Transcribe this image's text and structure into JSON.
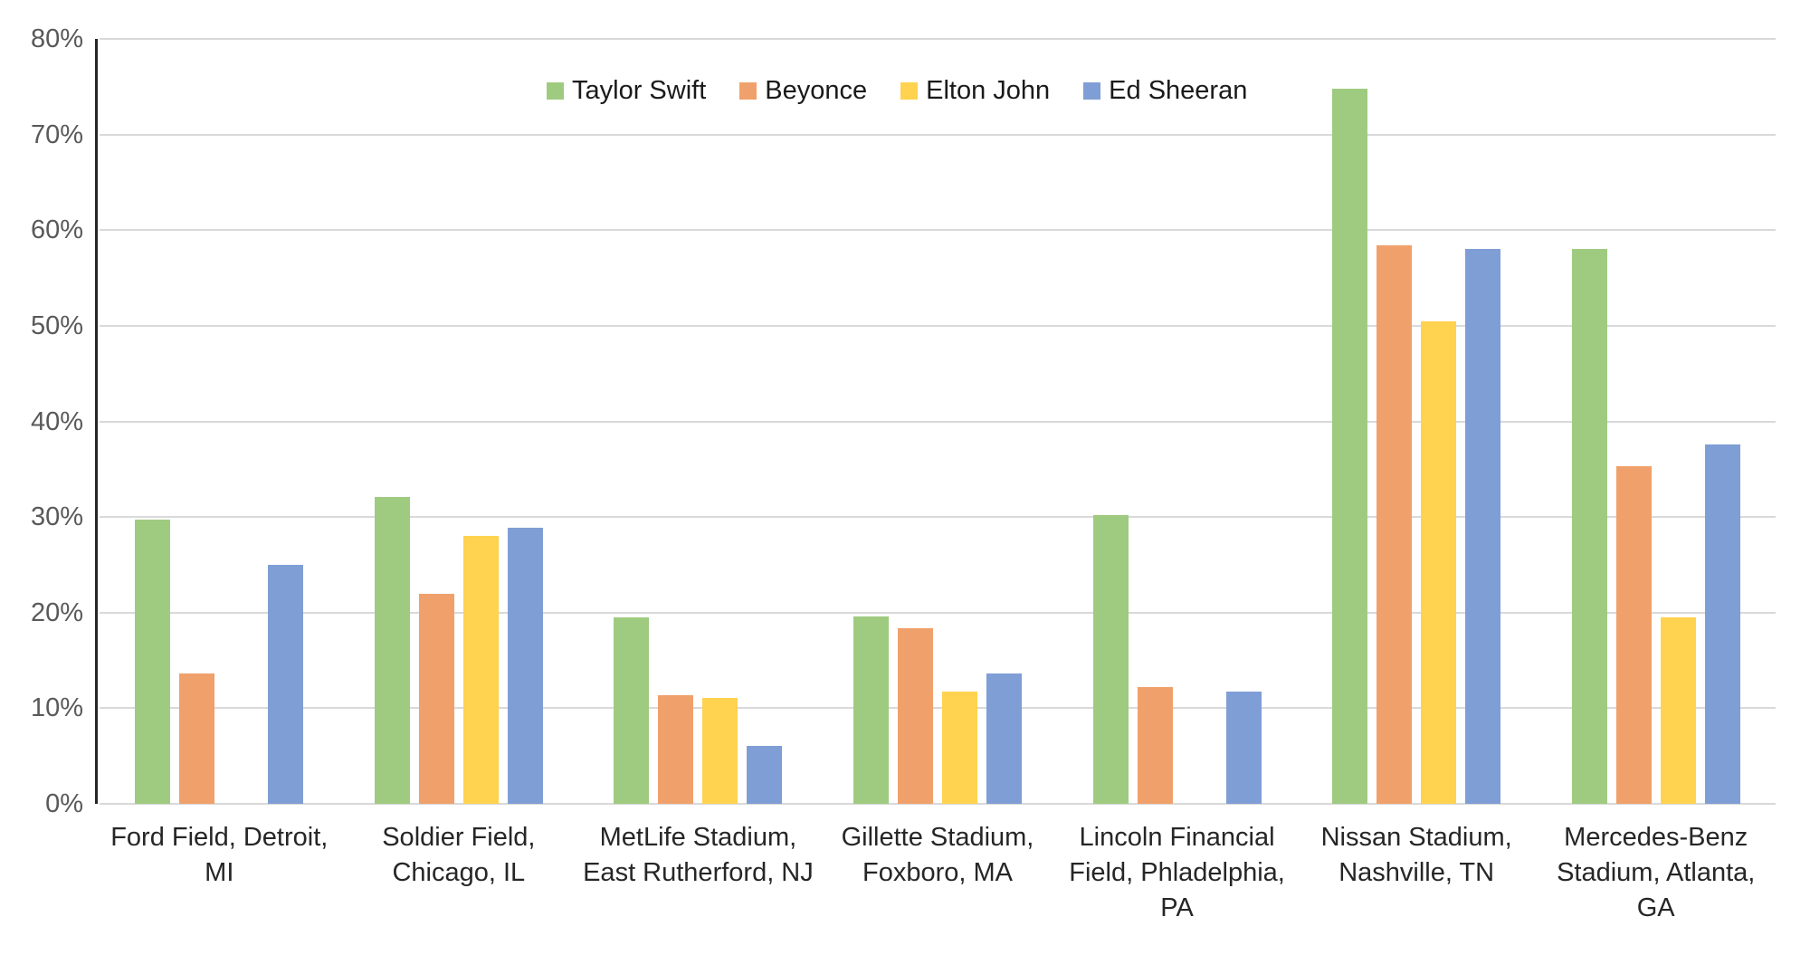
{
  "chart_data": {
    "type": "bar",
    "title": "",
    "xlabel": "",
    "ylabel": "",
    "categories": [
      "Ford Field, Detroit, MI",
      "Soldier Field, Chicago, IL",
      "MetLife Stadium, East Rutherford, NJ",
      "Gillette Stadium, Foxboro, MA",
      "Lincoln Financial Field, Phladelphia, PA",
      "Nissan Stadium, Nashville, TN",
      "Mercedes-Benz Stadium, Atlanta, GA"
    ],
    "series": [
      {
        "name": "Taylor Swift",
        "color": "#9fcb80",
        "values": [
          29.7,
          32.1,
          19.5,
          19.6,
          30.2,
          74.8,
          58.0
        ]
      },
      {
        "name": "Beyonce",
        "color": "#f0a16b",
        "values": [
          13.6,
          22.0,
          11.4,
          18.4,
          12.2,
          58.4,
          35.3
        ]
      },
      {
        "name": "Elton John",
        "color": "#ffd24f",
        "values": [
          null,
          28.0,
          11.1,
          11.7,
          null,
          50.5,
          19.5
        ]
      },
      {
        "name": "Ed Sheeran",
        "color": "#7f9ed5",
        "values": [
          25.0,
          28.9,
          6.1,
          13.6,
          11.7,
          58.0,
          37.6
        ]
      }
    ],
    "ylim": [
      0,
      80
    ],
    "ytick_step": 10,
    "ytick_labels": [
      "0%",
      "10%",
      "20%",
      "30%",
      "40%",
      "50%",
      "60%",
      "70%",
      "80%"
    ],
    "value_format": "percent",
    "grid": true,
    "legend_position": "top-center",
    "colors": {
      "gridline": "#d9d9d9",
      "y_axis_line": "#262626",
      "ytick_text": "#595959",
      "xtick_text": "#262626",
      "background": "#ffffff"
    }
  }
}
